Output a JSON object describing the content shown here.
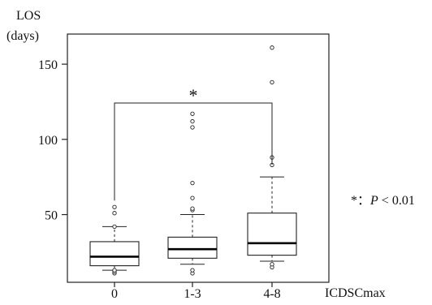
{
  "chart_data": {
    "type": "boxplot",
    "ylabel_line1": "LOS",
    "ylabel_line2": "(days)",
    "xlabel": "ICDSCmax",
    "ylim": [
      5,
      170
    ],
    "y_ticks": [
      50,
      100,
      150
    ],
    "categories": [
      "0",
      "1-3",
      "4-8"
    ],
    "boxes": [
      {
        "category": "0",
        "whisker_low": 13,
        "q1": 16,
        "median": 22,
        "q3": 32,
        "whisker_high": 42,
        "outliers": [
          11,
          12,
          13,
          42,
          51,
          55
        ]
      },
      {
        "category": "1-3",
        "whisker_low": 17,
        "q1": 21,
        "median": 27,
        "q3": 35,
        "whisker_high": 50,
        "outliers": [
          11,
          13,
          53,
          54,
          61,
          71,
          108,
          112,
          117
        ]
      },
      {
        "category": "4-8",
        "whisker_low": 19,
        "q1": 23,
        "median": 31,
        "q3": 51,
        "whisker_high": 75,
        "outliers": [
          15,
          17,
          83,
          88,
          138,
          161
        ]
      }
    ],
    "significance": {
      "from": "0",
      "to": "4-8",
      "star": "*",
      "note_star": "*",
      "note_sep": "：",
      "note_p": "P",
      "note_rest": " < 0.01"
    }
  }
}
